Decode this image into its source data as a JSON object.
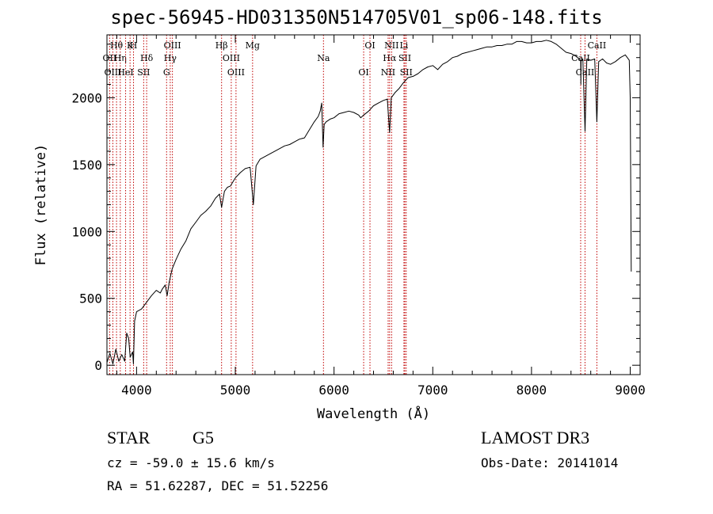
{
  "title": "spec-56945-HD031350N514705V01_sp06-148.fits",
  "footer": {
    "class_label": "STAR",
    "subclass": "G5",
    "survey": "LAMOST DR3",
    "redshift_text": "cz = -59.0 ± 15.6 km/s",
    "obs_date": "Obs-Date: 20141014",
    "coords": "RA =  51.62287, DEC =  51.52256"
  },
  "chart_data": {
    "type": "line",
    "title": "spec-56945-HD031350N514705V01_sp06-148.fits",
    "xlabel": "Wavelength (Å)",
    "ylabel": "Flux (relative)",
    "xlim": [
      3700,
      9100
    ],
    "ylim": [
      -70,
      2470
    ],
    "xticks": [
      4000,
      5000,
      6000,
      7000,
      8000,
      9000
    ],
    "yticks": [
      0,
      500,
      1000,
      1500,
      2000
    ],
    "grid": false,
    "series": [
      {
        "name": "flux",
        "points": [
          [
            3700,
            20
          ],
          [
            3730,
            90
          ],
          [
            3760,
            10
          ],
          [
            3790,
            120
          ],
          [
            3820,
            30
          ],
          [
            3850,
            80
          ],
          [
            3880,
            30
          ],
          [
            3900,
            240
          ],
          [
            3920,
            200
          ],
          [
            3935,
            60
          ],
          [
            3960,
            100
          ],
          [
            3968,
            10
          ],
          [
            3980,
            330
          ],
          [
            4000,
            400
          ],
          [
            4050,
            420
          ],
          [
            4100,
            470
          ],
          [
            4150,
            520
          ],
          [
            4200,
            560
          ],
          [
            4240,
            540
          ],
          [
            4261,
            570
          ],
          [
            4290,
            600
          ],
          [
            4310,
            520
          ],
          [
            4330,
            620
          ],
          [
            4360,
            720
          ],
          [
            4400,
            790
          ],
          [
            4450,
            870
          ],
          [
            4500,
            930
          ],
          [
            4550,
            1020
          ],
          [
            4600,
            1070
          ],
          [
            4650,
            1120
          ],
          [
            4700,
            1150
          ],
          [
            4750,
            1190
          ],
          [
            4800,
            1250
          ],
          [
            4840,
            1280
          ],
          [
            4861,
            1180
          ],
          [
            4890,
            1300
          ],
          [
            4920,
            1330
          ],
          [
            4950,
            1340
          ],
          [
            5000,
            1400
          ],
          [
            5050,
            1440
          ],
          [
            5100,
            1470
          ],
          [
            5150,
            1480
          ],
          [
            5183,
            1200
          ],
          [
            5210,
            1490
          ],
          [
            5250,
            1540
          ],
          [
            5300,
            1560
          ],
          [
            5350,
            1580
          ],
          [
            5400,
            1600
          ],
          [
            5450,
            1620
          ],
          [
            5500,
            1640
          ],
          [
            5550,
            1650
          ],
          [
            5600,
            1670
          ],
          [
            5650,
            1690
          ],
          [
            5700,
            1700
          ],
          [
            5750,
            1760
          ],
          [
            5800,
            1820
          ],
          [
            5840,
            1860
          ],
          [
            5860,
            1900
          ],
          [
            5875,
            1960
          ],
          [
            5889,
            1630
          ],
          [
            5900,
            1800
          ],
          [
            5920,
            1820
          ],
          [
            5960,
            1840
          ],
          [
            6000,
            1850
          ],
          [
            6050,
            1880
          ],
          [
            6100,
            1890
          ],
          [
            6150,
            1900
          ],
          [
            6200,
            1890
          ],
          [
            6250,
            1870
          ],
          [
            6270,
            1850
          ],
          [
            6300,
            1870
          ],
          [
            6350,
            1900
          ],
          [
            6400,
            1940
          ],
          [
            6450,
            1960
          ],
          [
            6500,
            1980
          ],
          [
            6540,
            1990
          ],
          [
            6563,
            1740
          ],
          [
            6580,
            2000
          ],
          [
            6620,
            2040
          ],
          [
            6660,
            2070
          ],
          [
            6700,
            2110
          ],
          [
            6750,
            2150
          ],
          [
            6800,
            2160
          ],
          [
            6850,
            2180
          ],
          [
            6900,
            2210
          ],
          [
            6950,
            2230
          ],
          [
            7000,
            2240
          ],
          [
            7050,
            2210
          ],
          [
            7100,
            2250
          ],
          [
            7150,
            2270
          ],
          [
            7200,
            2300
          ],
          [
            7250,
            2310
          ],
          [
            7300,
            2330
          ],
          [
            7350,
            2340
          ],
          [
            7400,
            2350
          ],
          [
            7450,
            2360
          ],
          [
            7500,
            2370
          ],
          [
            7550,
            2380
          ],
          [
            7600,
            2380
          ],
          [
            7650,
            2390
          ],
          [
            7700,
            2390
          ],
          [
            7750,
            2400
          ],
          [
            7800,
            2400
          ],
          [
            7850,
            2420
          ],
          [
            7900,
            2420
          ],
          [
            7950,
            2410
          ],
          [
            8000,
            2410
          ],
          [
            8050,
            2420
          ],
          [
            8100,
            2420
          ],
          [
            8150,
            2430
          ],
          [
            8200,
            2420
          ],
          [
            8250,
            2400
          ],
          [
            8300,
            2370
          ],
          [
            8350,
            2340
          ],
          [
            8400,
            2330
          ],
          [
            8450,
            2310
          ],
          [
            8498,
            2280
          ],
          [
            8500,
            2100
          ],
          [
            8502,
            2280
          ],
          [
            8520,
            2290
          ],
          [
            8542,
            1750
          ],
          [
            8560,
            2290
          ],
          [
            8600,
            2280
          ],
          [
            8640,
            2290
          ],
          [
            8662,
            1820
          ],
          [
            8680,
            2270
          ],
          [
            8720,
            2290
          ],
          [
            8760,
            2260
          ],
          [
            8800,
            2250
          ],
          [
            8850,
            2270
          ],
          [
            8900,
            2300
          ],
          [
            8950,
            2320
          ],
          [
            8990,
            2280
          ],
          [
            9000,
            2000
          ],
          [
            9010,
            700
          ]
        ]
      }
    ],
    "lines": [
      {
        "label": "Hθ",
        "wl": 3797
      },
      {
        "label": "OII",
        "wl": 3727
      },
      {
        "label": "OIII",
        "wl": 3760
      },
      {
        "label": "K",
        "wl": 3934
      },
      {
        "label": "Hη",
        "wl": 3835
      },
      {
        "label": "HeI",
        "wl": 3889
      },
      {
        "label": "H",
        "wl": 3969
      },
      {
        "label": "Hδ",
        "wl": 4102
      },
      {
        "label": "SII",
        "wl": 4072
      },
      {
        "label": "OIII",
        "wl": 4363
      },
      {
        "label": "Hγ",
        "wl": 4341
      },
      {
        "label": "G",
        "wl": 4304
      },
      {
        "label": "Hβ",
        "wl": 4861
      },
      {
        "label": "OIII",
        "wl": 4959
      },
      {
        "label": "OIII",
        "wl": 5007
      },
      {
        "label": "Mg",
        "wl": 5175
      },
      {
        "label": "Na",
        "wl": 5893
      },
      {
        "label": "OI",
        "wl": 6300
      },
      {
        "label": "OI",
        "wl": 6364
      },
      {
        "label": "Hα",
        "wl": 6563
      },
      {
        "label": "NII",
        "wl": 6548
      },
      {
        "label": "NII",
        "wl": 6583
      },
      {
        "label": "SII",
        "wl": 6717
      },
      {
        "label": "SII",
        "wl": 6731
      },
      {
        "label": "Li",
        "wl": 6708
      },
      {
        "label": "CaII",
        "wl": 8498
      },
      {
        "label": "CaII",
        "wl": 8542
      },
      {
        "label": "CaII",
        "wl": 8662
      }
    ]
  }
}
